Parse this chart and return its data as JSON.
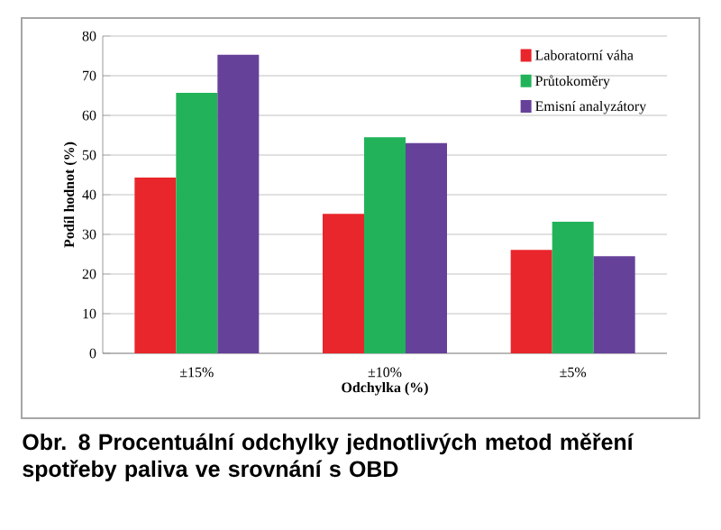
{
  "chart_data": {
    "type": "bar",
    "xlabel": "Odchylka (%)",
    "ylabel": "Podíl hodnot (%)",
    "categories": [
      "±15%",
      "±10%",
      "±5%"
    ],
    "series": [
      {
        "name": "Laboratorní váha",
        "color": "#e8262b",
        "values": [
          44.3,
          35.2,
          26.1
        ]
      },
      {
        "name": "Průtokoměry",
        "color": "#22b35a",
        "values": [
          65.7,
          54.5,
          33.2
        ]
      },
      {
        "name": "Emisní analyzátory",
        "color": "#66419a",
        "values": [
          75.3,
          53.0,
          24.5
        ]
      }
    ],
    "ylim": [
      0,
      80
    ],
    "yticks": [
      0,
      10,
      20,
      30,
      40,
      50,
      60,
      70,
      80
    ],
    "grid": "y",
    "legend": "top right",
    "annotations": [
      "Obr. 8 Procentuální odchylky jednotlivých metod měření spotřeby paliva ve srovnání s OBD"
    ]
  }
}
